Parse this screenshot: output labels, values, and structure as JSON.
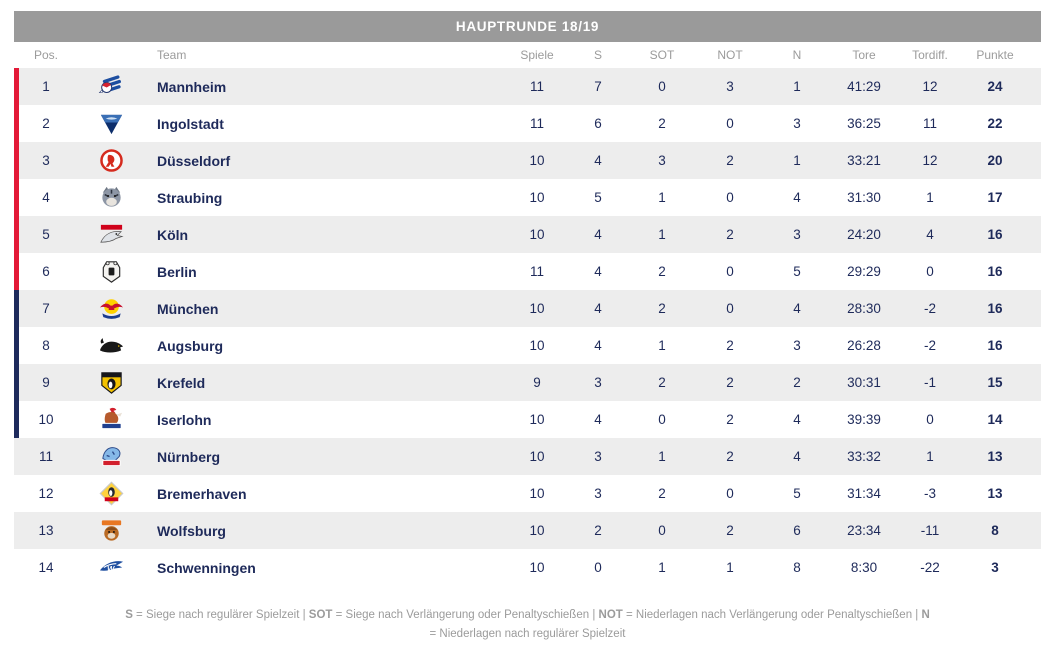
{
  "title": "HAUPTRUNDE 18/19",
  "colors": {
    "accent_red": "#e31937",
    "accent_navy": "#1d2a5c",
    "title_bar_bg": "#9a9a9a",
    "row_stripe": "#ededed",
    "text_navy": "#1e2a5a",
    "muted_gray": "#9b9b9b"
  },
  "table": {
    "columns": [
      "Pos.",
      "Team",
      "Spiele",
      "S",
      "SOT",
      "NOT",
      "N",
      "Tore",
      "Tordiff.",
      "Punkte"
    ],
    "rows": [
      {
        "pos": 1,
        "team": "Mannheim",
        "logo": "adler-mannheim-logo",
        "bar": "red",
        "spiele": 11,
        "s": 7,
        "sot": 0,
        "not": 3,
        "n": 1,
        "tore": "41:29",
        "tordiff": "12",
        "punkte": 24
      },
      {
        "pos": 2,
        "team": "Ingolstadt",
        "logo": "erc-ingolstadt-logo",
        "bar": "red",
        "spiele": 11,
        "s": 6,
        "sot": 2,
        "not": 0,
        "n": 3,
        "tore": "36:25",
        "tordiff": "11",
        "punkte": 22
      },
      {
        "pos": 3,
        "team": "Düsseldorf",
        "logo": "duesseldorfer-eg-logo",
        "bar": "red",
        "spiele": 10,
        "s": 4,
        "sot": 3,
        "not": 2,
        "n": 1,
        "tore": "33:21",
        "tordiff": "12",
        "punkte": 20
      },
      {
        "pos": 4,
        "team": "Straubing",
        "logo": "straubing-tigers-logo",
        "bar": "red",
        "spiele": 10,
        "s": 5,
        "sot": 1,
        "not": 0,
        "n": 4,
        "tore": "31:30",
        "tordiff": "1",
        "punkte": 17
      },
      {
        "pos": 5,
        "team": "Köln",
        "logo": "koelner-haie-logo",
        "bar": "red",
        "spiele": 10,
        "s": 4,
        "sot": 1,
        "not": 2,
        "n": 3,
        "tore": "24:20",
        "tordiff": "4",
        "punkte": 16
      },
      {
        "pos": 6,
        "team": "Berlin",
        "logo": "eisbaeren-berlin-logo",
        "bar": "red",
        "spiele": 11,
        "s": 4,
        "sot": 2,
        "not": 0,
        "n": 5,
        "tore": "29:29",
        "tordiff": "0",
        "punkte": 16
      },
      {
        "pos": 7,
        "team": "München",
        "logo": "redbull-muenchen-logo",
        "bar": "navy",
        "spiele": 10,
        "s": 4,
        "sot": 2,
        "not": 0,
        "n": 4,
        "tore": "28:30",
        "tordiff": "-2",
        "punkte": 16
      },
      {
        "pos": 8,
        "team": "Augsburg",
        "logo": "augsburger-panther-logo",
        "bar": "navy",
        "spiele": 10,
        "s": 4,
        "sot": 1,
        "not": 2,
        "n": 3,
        "tore": "26:28",
        "tordiff": "-2",
        "punkte": 16
      },
      {
        "pos": 9,
        "team": "Krefeld",
        "logo": "krefeld-pinguine-logo",
        "bar": "navy",
        "spiele": 9,
        "s": 3,
        "sot": 2,
        "not": 2,
        "n": 2,
        "tore": "30:31",
        "tordiff": "-1",
        "punkte": 15
      },
      {
        "pos": 10,
        "team": "Iserlohn",
        "logo": "iserlohn-roosters-logo",
        "bar": "navy",
        "spiele": 10,
        "s": 4,
        "sot": 0,
        "not": 2,
        "n": 4,
        "tore": "39:39",
        "tordiff": "0",
        "punkte": 14
      },
      {
        "pos": 11,
        "team": "Nürnberg",
        "logo": "nuernberg-ice-tigers-logo",
        "bar": "none",
        "spiele": 10,
        "s": 3,
        "sot": 1,
        "not": 2,
        "n": 4,
        "tore": "33:32",
        "tordiff": "1",
        "punkte": 13
      },
      {
        "pos": 12,
        "team": "Bremerhaven",
        "logo": "fischtown-pinguins-logo",
        "bar": "none",
        "spiele": 10,
        "s": 3,
        "sot": 2,
        "not": 0,
        "n": 5,
        "tore": "31:34",
        "tordiff": "-3",
        "punkte": 13
      },
      {
        "pos": 13,
        "team": "Wolfsburg",
        "logo": "grizzlys-wolfsburg-logo",
        "bar": "none",
        "spiele": 10,
        "s": 2,
        "sot": 0,
        "not": 2,
        "n": 6,
        "tore": "23:34",
        "tordiff": "-11",
        "punkte": 8
      },
      {
        "pos": 14,
        "team": "Schwenningen",
        "logo": "wild-wings-schwenningen-logo",
        "bar": "none",
        "spiele": 10,
        "s": 0,
        "sot": 1,
        "not": 1,
        "n": 8,
        "tore": "8:30",
        "tordiff": "-22",
        "punkte": 3
      }
    ]
  },
  "legend": {
    "segments": [
      {
        "text": "S",
        "bold": true
      },
      {
        "text": " = Siege nach regulärer Spielzeit",
        "bold": false
      },
      {
        "text": "   |   ",
        "bold": false
      },
      {
        "text": "SOT",
        "bold": true
      },
      {
        "text": " = Siege nach Verlängerung oder Penaltyschießen",
        "bold": false
      },
      {
        "text": "   |   ",
        "bold": false
      },
      {
        "text": "NOT",
        "bold": true
      },
      {
        "text": " = Niederlagen nach Verlängerung oder Penaltyschießen",
        "bold": false
      },
      {
        "text": "   |   ",
        "bold": false
      },
      {
        "text": "N",
        "bold": true
      },
      {
        "text": " = Niederlagen nach regulärer Spielzeit",
        "bold": false
      }
    ]
  }
}
